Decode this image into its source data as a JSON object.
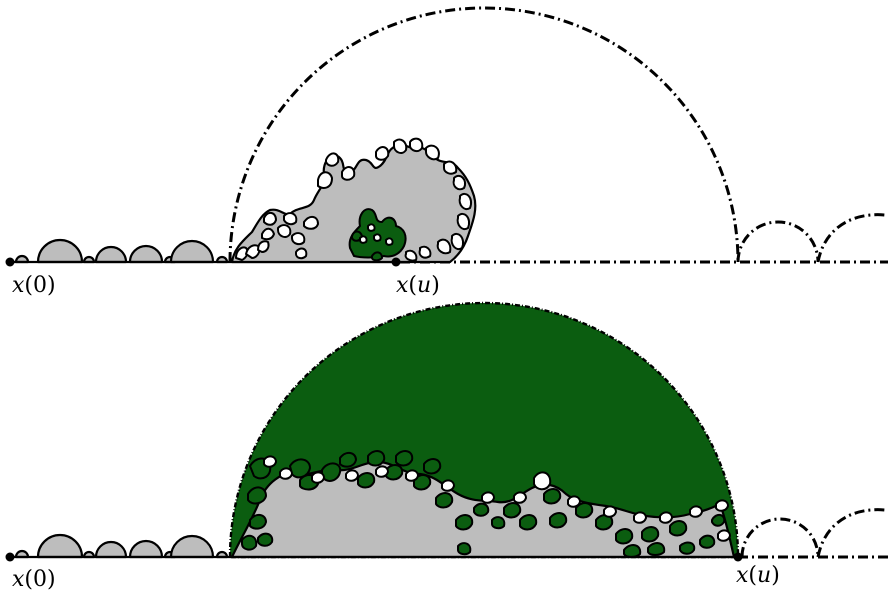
{
  "panels": [
    {
      "id": "top",
      "start_label": {
        "var": "x",
        "arg": "0"
      },
      "end_label": {
        "var": "x",
        "arg": "u"
      }
    },
    {
      "id": "bottom",
      "start_label": {
        "var": "x",
        "arg": "0"
      },
      "end_label": {
        "var": "x",
        "arg": "u"
      }
    }
  ],
  "colors": {
    "grey_fill": "#bdbdbd",
    "green_fill": "#0b5d10",
    "outline": "#000000"
  }
}
